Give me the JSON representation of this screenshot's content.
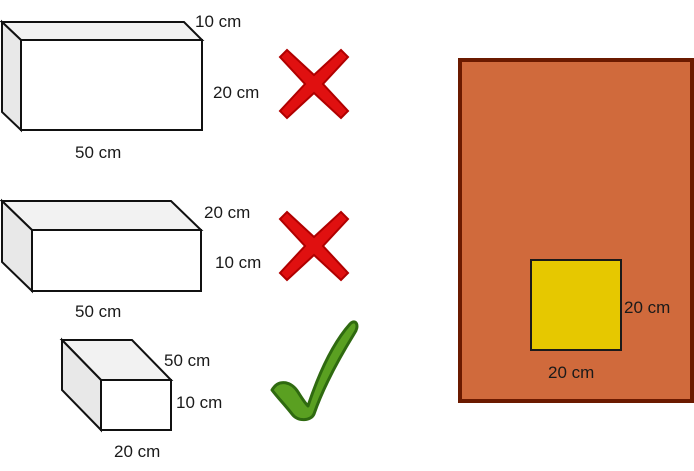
{
  "boxes": [
    {
      "id": "box-1",
      "dimensions": [
        "10 cm",
        "20 cm",
        "50 cm"
      ],
      "verdict": "rejected"
    },
    {
      "id": "box-2",
      "dimensions": [
        "20 cm",
        "10 cm",
        "50 cm"
      ],
      "verdict": "rejected"
    },
    {
      "id": "box-3",
      "dimensions": [
        "50 cm",
        "10 cm",
        "20 cm"
      ],
      "verdict": "accepted"
    }
  ],
  "opening": {
    "width_label": "20 cm",
    "height_label": "20 cm"
  },
  "colors": {
    "wall_fill": "#d06a3c",
    "wall_stroke": "#6b1a00",
    "opening_fill": "#e6c800",
    "cross": "#e01010",
    "check": "#5aa021",
    "box_front": "#ffffff",
    "box_side": "#e8e8e8",
    "box_top": "#f2f2f2"
  }
}
